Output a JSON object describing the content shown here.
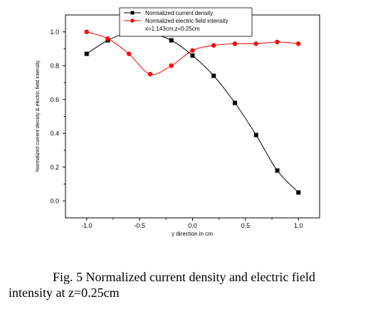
{
  "figure": {
    "caption_line1": "Fig. 5 Normalized current density and electric field",
    "caption_line2": "intensity at z=0.25cm"
  },
  "chart_data": {
    "type": "line",
    "xlabel": "y direction in cm",
    "ylabel": "Normalized current density & electric field intensity",
    "xlim": [
      -1.2,
      1.2
    ],
    "ylim": [
      -0.1,
      1.1
    ],
    "xticks": [
      -1.0,
      -0.5,
      0.0,
      0.5,
      1.0
    ],
    "xtick_labels": [
      "-1.0",
      "-0.5",
      "0.0",
      "0.5",
      "1.0"
    ],
    "yticks": [
      0.0,
      0.2,
      0.4,
      0.6,
      0.8,
      1.0
    ],
    "ytick_labels": [
      "0.0",
      "0.2",
      "0.4",
      "0.6",
      "0.8",
      "1.0"
    ],
    "grid": false,
    "legend_position": "top-center",
    "legend_note": "x=1.143cm,z=0.25cm",
    "series": [
      {
        "name": "Normalized current density",
        "color": "#000000",
        "marker": "square",
        "x": [
          -1.0,
          -0.8,
          -0.6,
          -0.4,
          -0.2,
          0.0,
          0.2,
          0.4,
          0.6,
          0.8,
          1.0
        ],
        "y": [
          0.87,
          0.95,
          0.995,
          0.99,
          0.95,
          0.86,
          0.74,
          0.58,
          0.39,
          0.18,
          0.05
        ]
      },
      {
        "name": "Normalized electric field intensity",
        "color": "#ff0000",
        "marker": "circle",
        "x": [
          -1.0,
          -0.8,
          -0.6,
          -0.4,
          -0.2,
          0.0,
          0.2,
          0.4,
          0.6,
          0.8,
          1.0
        ],
        "y": [
          1.0,
          0.96,
          0.87,
          0.75,
          0.8,
          0.89,
          0.92,
          0.93,
          0.93,
          0.94,
          0.93
        ]
      }
    ]
  }
}
